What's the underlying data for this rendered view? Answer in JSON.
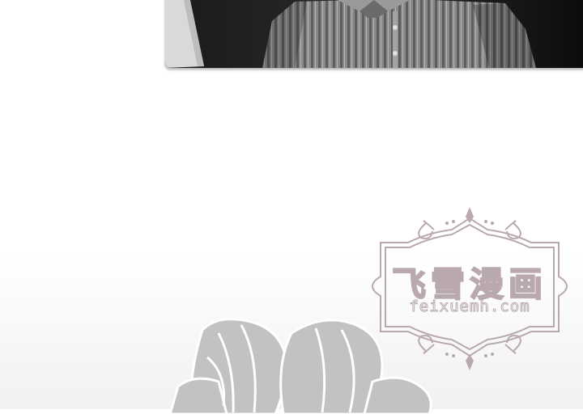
{
  "watermark": {
    "title": "飞雪漫画",
    "url": "feixuemh.com",
    "color": "#b9a9ad"
  },
  "panel": {
    "subject": "man in striped shirt"
  },
  "icons": [
    "flower-decoration"
  ]
}
